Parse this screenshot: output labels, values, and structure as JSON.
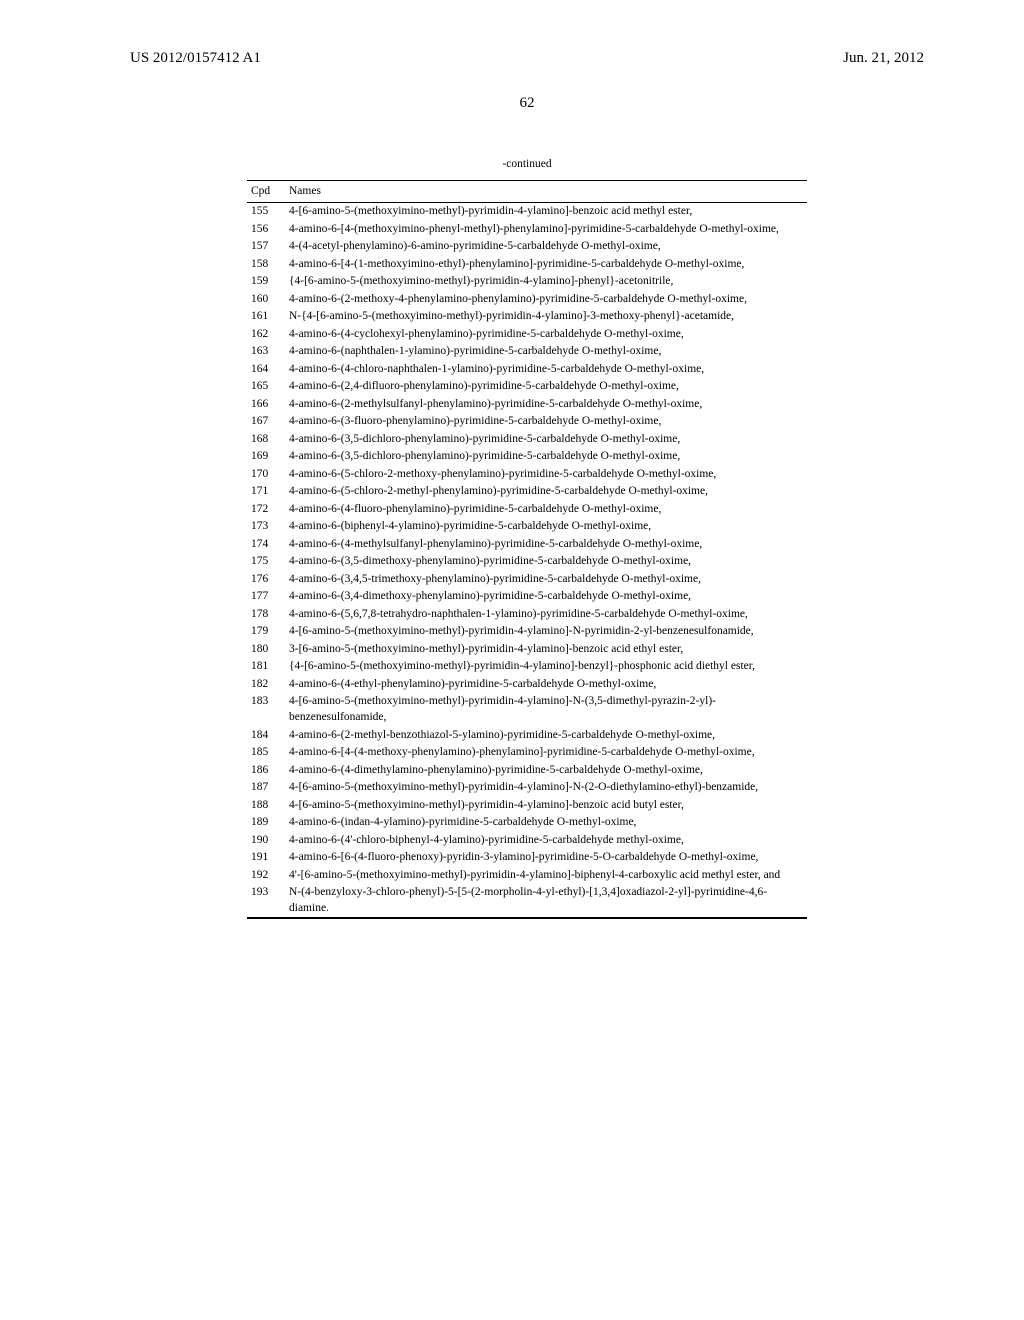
{
  "header": {
    "doc_number": "US 2012/0157412 A1",
    "date": "Jun. 21, 2012"
  },
  "page_number": "62",
  "table_continued": "-continued",
  "columns": {
    "cpd": "Cpd",
    "names": "Names"
  },
  "rows": [
    {
      "n": "155",
      "t": "4-[6-amino-5-(methoxyimino-methyl)-pyrimidin-4-ylamino]-benzoic acid methyl ester,"
    },
    {
      "n": "156",
      "t": "4-amino-6-[4-(methoxyimino-phenyl-methyl)-phenylamino]-pyrimidine-5-carbaldehyde O-methyl-oxime,"
    },
    {
      "n": "157",
      "t": "4-(4-acetyl-phenylamino)-6-amino-pyrimidine-5-carbaldehyde O-methyl-oxime,"
    },
    {
      "n": "158",
      "t": "4-amino-6-[4-(1-methoxyimino-ethyl)-phenylamino]-pyrimidine-5-carbaldehyde O-methyl-oxime,"
    },
    {
      "n": "159",
      "t": "{4-[6-amino-5-(methoxyimino-methyl)-pyrimidin-4-ylamino]-phenyl}-acetonitrile,"
    },
    {
      "n": "160",
      "t": "4-amino-6-(2-methoxy-4-phenylamino-phenylamino)-pyrimidine-5-carbaldehyde O-methyl-oxime,"
    },
    {
      "n": "161",
      "t": "N-{4-[6-amino-5-(methoxyimino-methyl)-pyrimidin-4-ylamino]-3-methoxy-phenyl}-acetamide,"
    },
    {
      "n": "162",
      "t": "4-amino-6-(4-cyclohexyl-phenylamino)-pyrimidine-5-carbaldehyde O-methyl-oxime,"
    },
    {
      "n": "163",
      "t": "4-amino-6-(naphthalen-1-ylamino)-pyrimidine-5-carbaldehyde O-methyl-oxime,"
    },
    {
      "n": "164",
      "t": "4-amino-6-(4-chloro-naphthalen-1-ylamino)-pyrimidine-5-carbaldehyde O-methyl-oxime,"
    },
    {
      "n": "165",
      "t": "4-amino-6-(2,4-difluoro-phenylamino)-pyrimidine-5-carbaldehyde O-methyl-oxime,"
    },
    {
      "n": "166",
      "t": "4-amino-6-(2-methylsulfanyl-phenylamino)-pyrimidine-5-carbaldehyde O-methyl-oxime,"
    },
    {
      "n": "167",
      "t": "4-amino-6-(3-fluoro-phenylamino)-pyrimidine-5-carbaldehyde O-methyl-oxime,"
    },
    {
      "n": "168",
      "t": "4-amino-6-(3,5-dichloro-phenylamino)-pyrimidine-5-carbaldehyde O-methyl-oxime,"
    },
    {
      "n": "169",
      "t": "4-amino-6-(3,5-dichloro-phenylamino)-pyrimidine-5-carbaldehyde O-methyl-oxime,"
    },
    {
      "n": "170",
      "t": "4-amino-6-(5-chloro-2-methoxy-phenylamino)-pyrimidine-5-carbaldehyde O-methyl-oxime,"
    },
    {
      "n": "171",
      "t": "4-amino-6-(5-chloro-2-methyl-phenylamino)-pyrimidine-5-carbaldehyde O-methyl-oxime,"
    },
    {
      "n": "172",
      "t": "4-amino-6-(4-fluoro-phenylamino)-pyrimidine-5-carbaldehyde O-methyl-oxime,"
    },
    {
      "n": "173",
      "t": "4-amino-6-(biphenyl-4-ylamino)-pyrimidine-5-carbaldehyde O-methyl-oxime,"
    },
    {
      "n": "174",
      "t": "4-amino-6-(4-methylsulfanyl-phenylamino)-pyrimidine-5-carbaldehyde O-methyl-oxime,"
    },
    {
      "n": "175",
      "t": "4-amino-6-(3,5-dimethoxy-phenylamino)-pyrimidine-5-carbaldehyde O-methyl-oxime,"
    },
    {
      "n": "176",
      "t": "4-amino-6-(3,4,5-trimethoxy-phenylamino)-pyrimidine-5-carbaldehyde O-methyl-oxime,"
    },
    {
      "n": "177",
      "t": "4-amino-6-(3,4-dimethoxy-phenylamino)-pyrimidine-5-carbaldehyde O-methyl-oxime,"
    },
    {
      "n": "178",
      "t": "4-amino-6-(5,6,7,8-tetrahydro-naphthalen-1-ylamino)-pyrimidine-5-carbaldehyde O-methyl-oxime,"
    },
    {
      "n": "179",
      "t": "4-[6-amino-5-(methoxyimino-methyl)-pyrimidin-4-ylamino]-N-pyrimidin-2-yl-benzenesulfonamide,"
    },
    {
      "n": "180",
      "t": "3-[6-amino-5-(methoxyimino-methyl)-pyrimidin-4-ylamino]-benzoic acid ethyl ester,"
    },
    {
      "n": "181",
      "t": "{4-[6-amino-5-(methoxyimino-methyl)-pyrimidin-4-ylamino]-benzyl}-phosphonic acid diethyl ester,"
    },
    {
      "n": "182",
      "t": "4-amino-6-(4-ethyl-phenylamino)-pyrimidine-5-carbaldehyde O-methyl-oxime,"
    },
    {
      "n": "183",
      "t": "4-[6-amino-5-(methoxyimino-methyl)-pyrimidin-4-ylamino]-N-(3,5-dimethyl-pyrazin-2-yl)-benzenesulfonamide,"
    },
    {
      "n": "184",
      "t": "4-amino-6-(2-methyl-benzothiazol-5-ylamino)-pyrimidine-5-carbaldehyde O-methyl-oxime,"
    },
    {
      "n": "185",
      "t": "4-amino-6-[4-(4-methoxy-phenylamino)-phenylamino]-pyrimidine-5-carbaldehyde O-methyl-oxime,"
    },
    {
      "n": "186",
      "t": "4-amino-6-(4-dimethylamino-phenylamino)-pyrimidine-5-carbaldehyde O-methyl-oxime,"
    },
    {
      "n": "187",
      "t": "4-[6-amino-5-(methoxyimino-methyl)-pyrimidin-4-ylamino]-N-(2-O-diethylamino-ethyl)-benzamide,"
    },
    {
      "n": "188",
      "t": "4-[6-amino-5-(methoxyimino-methyl)-pyrimidin-4-ylamino]-benzoic acid butyl ester,"
    },
    {
      "n": "189",
      "t": "4-amino-6-(indan-4-ylamino)-pyrimidine-5-carbaldehyde O-methyl-oxime,"
    },
    {
      "n": "190",
      "t": "4-amino-6-(4'-chloro-biphenyl-4-ylamino)-pyrimidine-5-carbaldehyde methyl-oxime,"
    },
    {
      "n": "191",
      "t": "4-amino-6-[6-(4-fluoro-phenoxy)-pyridin-3-ylamino]-pyrimidine-5-O-carbaldehyde O-methyl-oxime,"
    },
    {
      "n": "192",
      "t": "4'-[6-amino-5-(methoxyimino-methyl)-pyrimidin-4-ylamino]-biphenyl-4-carboxylic acid methyl ester, and"
    },
    {
      "n": "193",
      "t": "N-(4-benzyloxy-3-chloro-phenyl)-5-[5-(2-morpholin-4-yl-ethyl)-[1,3,4]oxadiazol-2-yl]-pyrimidine-4,6-diamine."
    }
  ]
}
